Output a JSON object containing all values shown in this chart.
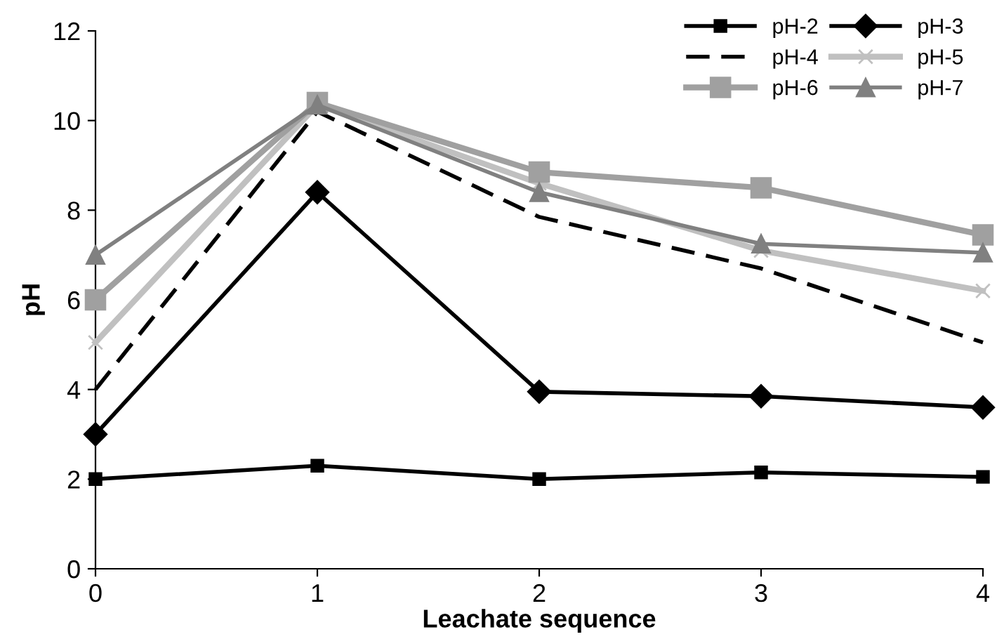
{
  "chart_data": {
    "type": "line",
    "xlabel": "Leachate sequence",
    "ylabel": "pH",
    "x": [
      0,
      1,
      2,
      3,
      4
    ],
    "xlim": [
      0,
      4
    ],
    "xticks": [
      0,
      1,
      2,
      3,
      4
    ],
    "ylim": [
      0,
      12
    ],
    "yticks": [
      0,
      2,
      4,
      6,
      8,
      10,
      12
    ],
    "grid": false,
    "legend": "top right",
    "series": [
      {
        "name": "pH-2",
        "color": "#000000",
        "marker": "square",
        "line_style": "solid",
        "values": [
          2.0,
          2.3,
          2.0,
          2.15,
          2.05
        ]
      },
      {
        "name": "pH-3",
        "color": "#000000",
        "marker": "diamond",
        "line_style": "solid",
        "values": [
          3.0,
          8.4,
          3.95,
          3.85,
          3.6
        ]
      },
      {
        "name": "pH-4",
        "color": "#000000",
        "marker": "none",
        "line_style": "dashed",
        "values": [
          4.0,
          10.2,
          7.85,
          6.7,
          5.05
        ]
      },
      {
        "name": "pH-5",
        "color": "#c0c0c0",
        "marker": "cross",
        "line_style": "solid",
        "values": [
          5.05,
          10.35,
          8.6,
          7.1,
          6.2
        ]
      },
      {
        "name": "pH-6",
        "color": "#a0a0a0",
        "marker": "square",
        "line_style": "solid",
        "values": [
          6.0,
          10.4,
          8.85,
          8.5,
          7.45
        ]
      },
      {
        "name": "pH-7",
        "color": "#808080",
        "marker": "triangle",
        "line_style": "solid",
        "values": [
          7.0,
          10.35,
          8.4,
          7.25,
          7.05
        ]
      }
    ]
  }
}
